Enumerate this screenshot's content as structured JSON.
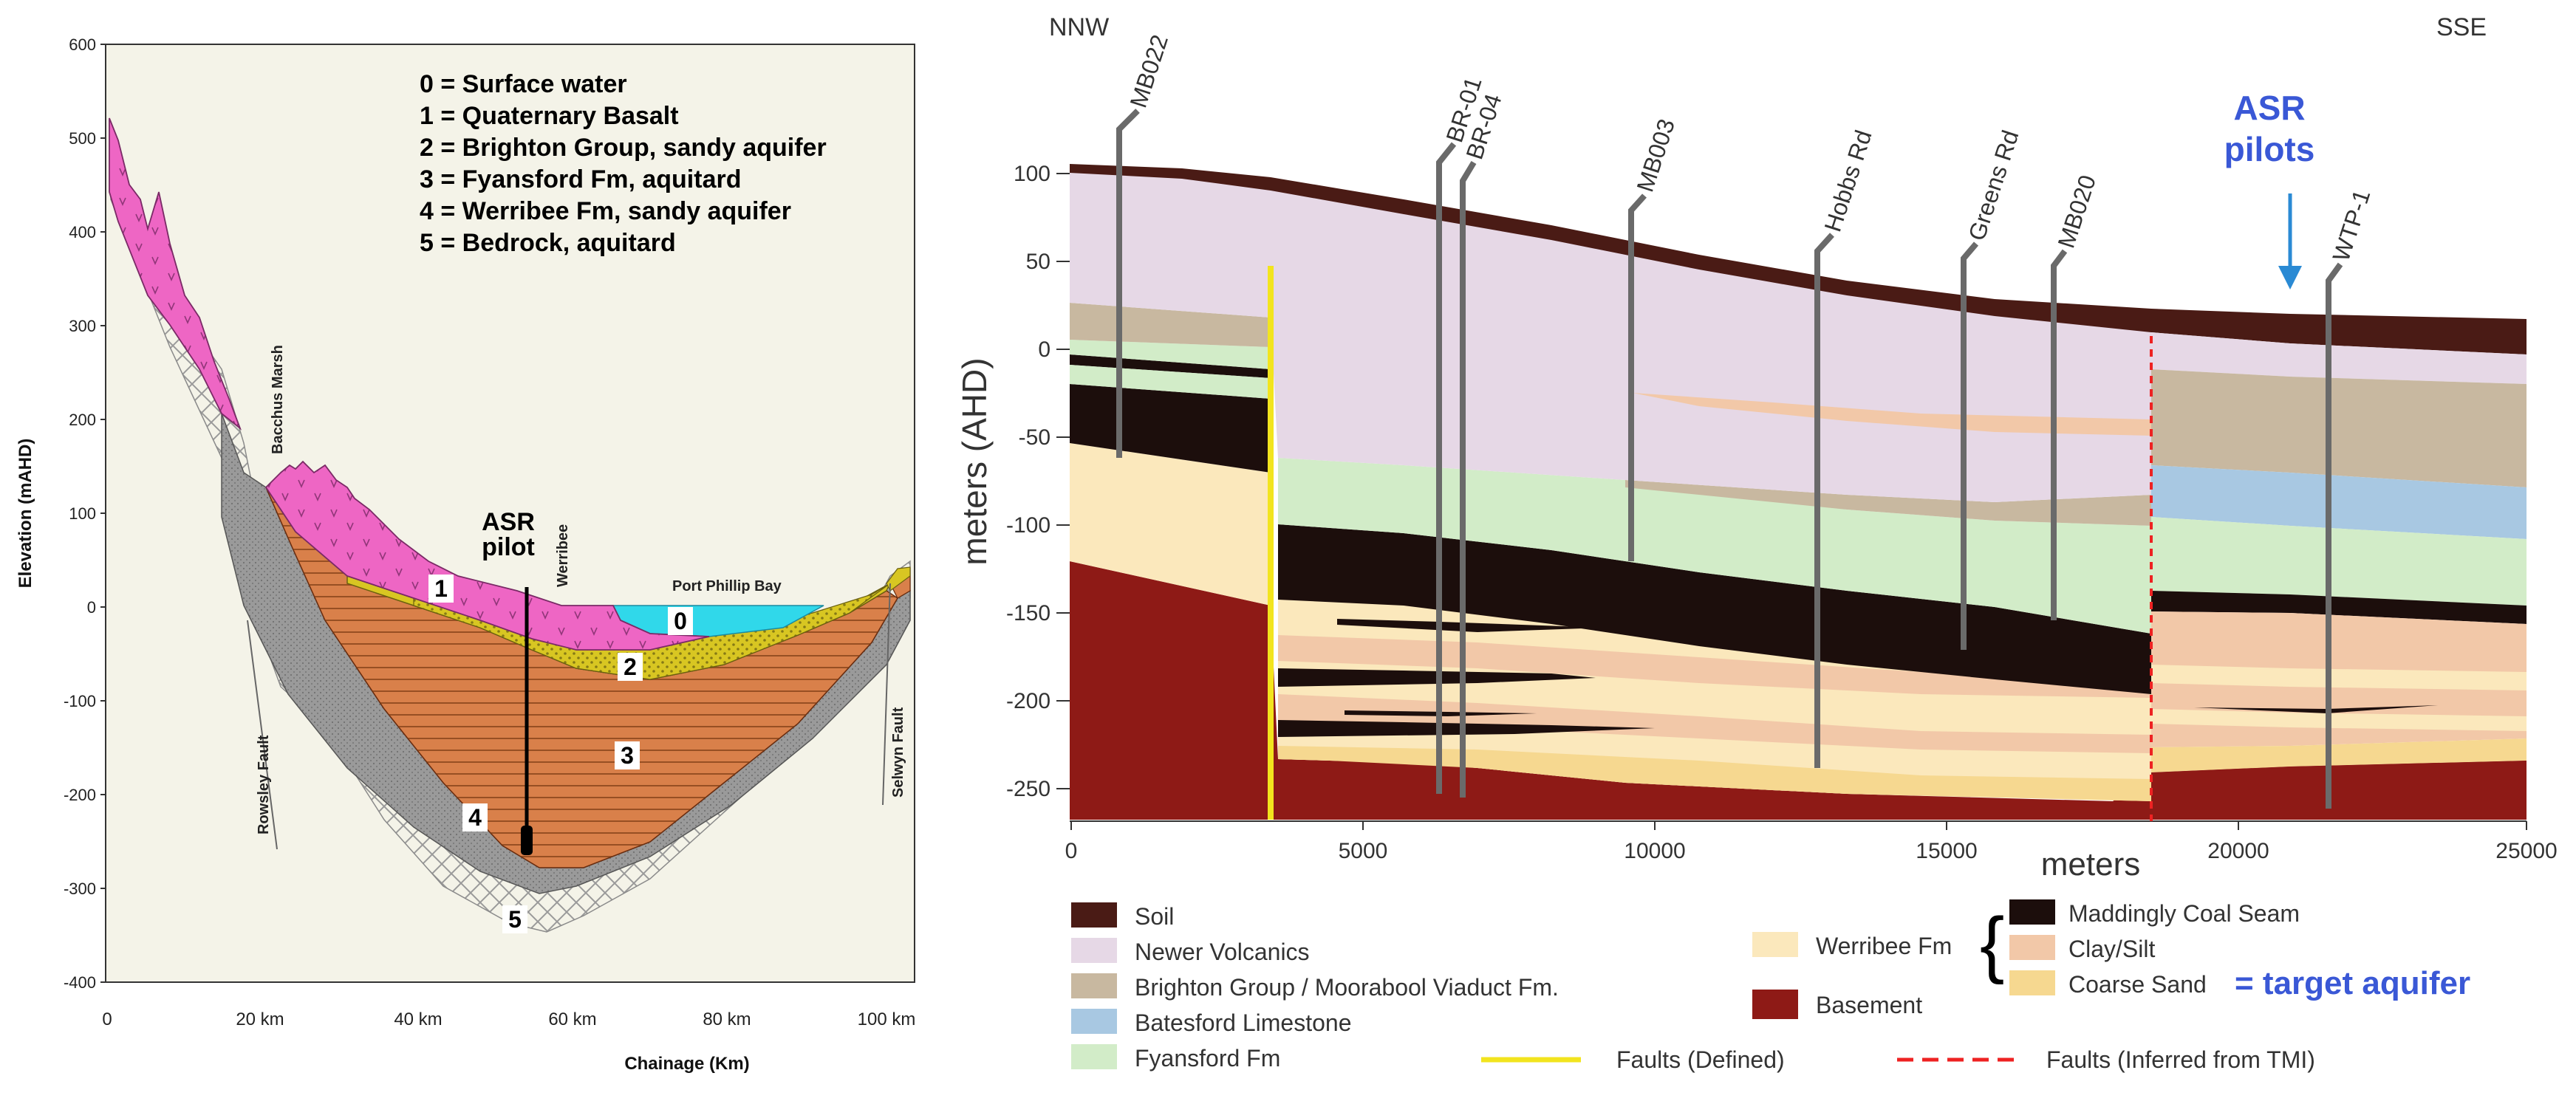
{
  "left_panel": {
    "y_axis_label": "Elevation (mAHD)",
    "x_axis_label": "Chainage (Km)",
    "y_ticks": [
      "600",
      "500",
      "400",
      "300",
      "200",
      "100",
      "0",
      "-100",
      "-200",
      "-300",
      "-400"
    ],
    "x_ticks": [
      "0",
      "20 km",
      "40 km",
      "60 km",
      "80 km",
      "100 km"
    ],
    "legend": [
      "0 = Surface water",
      "1 = Quaternary Basalt",
      "2 = Brighton Group, sandy aquifer",
      "3 = Fyansford Fm, aquitard",
      "4 = Werribee Fm, sandy aquifer",
      "5 = Bedrock, aquitard"
    ],
    "place_labels": {
      "bacchus_marsh": "Bacchus Marsh",
      "werribee": "Werribee",
      "port_phillip_bay": "Port Phillip Bay",
      "rowsley_fault": "Rowsley Fault",
      "selwyn_fault": "Selwyn Fault"
    },
    "asr_pilot": [
      "ASR",
      "pilot"
    ],
    "unit_numbers": [
      "0",
      "1",
      "2",
      "3",
      "4",
      "5"
    ]
  },
  "right_panel": {
    "y_axis_label": "meters (AHD)",
    "x_axis_label": "meters",
    "y_ticks": [
      "100",
      "50",
      "0",
      "-50",
      "-100",
      "-150",
      "-200",
      "-250"
    ],
    "x_ticks": [
      "0",
      "5000",
      "10000",
      "15000",
      "20000",
      "25000"
    ],
    "direction_left": "NNW",
    "direction_right": "SSE",
    "wells": [
      "MB022",
      "BR-01",
      "BR-04",
      "MB003",
      "Hobbs Rd",
      "Greens Rd",
      "MB020",
      "WTP-1"
    ],
    "asr_pilots": [
      "ASR",
      "pilots"
    ],
    "legend_left": [
      "Soil",
      "Newer Volcanics",
      "Brighton Group / Moorabool Viaduct Fm.",
      "Batesford Limestone",
      "Fyansford Fm"
    ],
    "werribee_label": "Werribee Fm",
    "basement_label": "Basement",
    "werribee_sub": [
      "Maddingly Coal Seam",
      "Clay/Silt",
      "Coarse Sand"
    ],
    "target_aquifer": "= target aquifer",
    "faults_defined": "Faults (Defined)",
    "faults_inferred": "Faults (Inferred from TMI)"
  },
  "colors": {
    "basalt": "#ee66c4",
    "brighton_yellow": "#d8c622",
    "fyansford_orange": "#d9804a",
    "werribee_grey": "#9a9a9a",
    "surface_water": "#30d8ea",
    "soil": "#4a1b15",
    "newer_volcanics": "#e6d8e6",
    "brighton_tan": "#c8b8a0",
    "batesford_blue": "#a8c8e2",
    "fyansford_green": "#d2ecc8",
    "coal": "#1c0e0c",
    "clay_silt": "#f2c8a8",
    "coarse_sand": "#f6d890",
    "werribee_pale": "#fbe8bc",
    "basement": "#8e1a16",
    "fault_defined": "#f2e41e",
    "fault_inferred": "#ee2222",
    "highlight_blue": "#3a58d6"
  }
}
